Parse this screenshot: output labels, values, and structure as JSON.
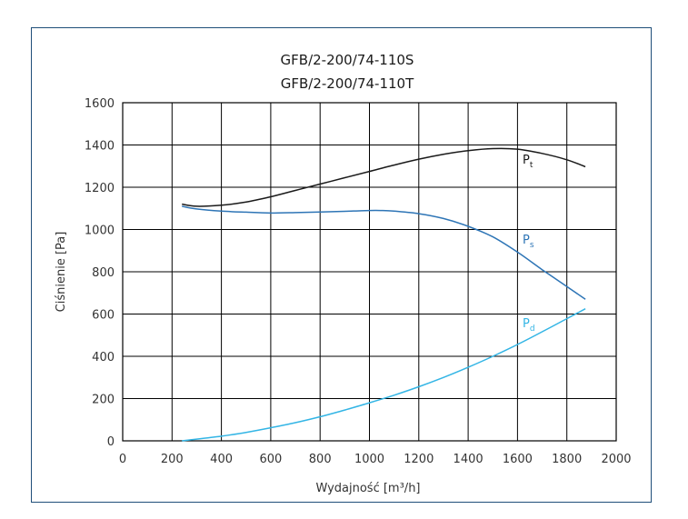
{
  "chart_data": {
    "type": "line",
    "title": "GFB/2-200/74-110S",
    "subtitle": "GFB/2-200/74-110T",
    "xlabel": "Wydajność [m³/h]",
    "ylabel": "Ciśnienie [Pa]",
    "xlim": [
      0,
      2000
    ],
    "ylim": [
      0,
      1600
    ],
    "xticks": [
      "0",
      "200",
      "400",
      "600",
      "800",
      "1000",
      "1200",
      "1400",
      "1600",
      "1800",
      "2000"
    ],
    "yticks": [
      "0",
      "200",
      "400",
      "600",
      "800",
      "1000",
      "1200",
      "1400",
      "1600"
    ],
    "grid": true,
    "series": [
      {
        "name": "P",
        "sub": "t",
        "color": "#1a1a1a",
        "x": [
          240,
          300,
          400,
          500,
          600,
          700,
          800,
          900,
          1000,
          1100,
          1200,
          1300,
          1400,
          1500,
          1600,
          1700,
          1800,
          1875
        ],
        "y": [
          1120,
          1110,
          1115,
          1130,
          1155,
          1185,
          1215,
          1245,
          1275,
          1305,
          1333,
          1356,
          1373,
          1383,
          1380,
          1360,
          1330,
          1297
        ]
      },
      {
        "name": "P",
        "sub": "s",
        "color": "#2e75b6",
        "x": [
          240,
          300,
          400,
          500,
          600,
          700,
          800,
          900,
          1000,
          1050,
          1100,
          1200,
          1300,
          1400,
          1500,
          1600,
          1700,
          1800,
          1875
        ],
        "y": [
          1110,
          1097,
          1087,
          1082,
          1078,
          1080,
          1083,
          1086,
          1090,
          1090,
          1087,
          1075,
          1052,
          1015,
          965,
          893,
          810,
          730,
          670
        ]
      },
      {
        "name": "P",
        "sub": "d",
        "color": "#33b5e5",
        "x": [
          240,
          300,
          400,
          500,
          600,
          700,
          800,
          900,
          1000,
          1100,
          1200,
          1300,
          1400,
          1500,
          1600,
          1700,
          1800,
          1875
        ],
        "y": [
          0,
          8,
          22,
          40,
          62,
          86,
          114,
          146,
          180,
          216,
          256,
          300,
          348,
          400,
          456,
          516,
          578,
          625
        ]
      }
    ]
  }
}
